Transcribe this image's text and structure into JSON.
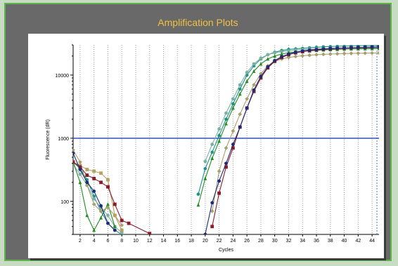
{
  "chart_data": {
    "type": "line",
    "title": "Amplification Plots",
    "xlabel": "Cycles",
    "ylabel": "Fluorescence (dR)",
    "y_scale": "log",
    "xlim": [
      1,
      45
    ],
    "ylim": [
      30,
      30000
    ],
    "x_ticks": [
      2,
      4,
      6,
      8,
      10,
      12,
      14,
      16,
      18,
      20,
      22,
      24,
      26,
      28,
      30,
      32,
      34,
      36,
      38,
      40,
      42,
      44
    ],
    "y_ticks": [
      100,
      1000,
      10000
    ],
    "y_tick_labels": [
      "100",
      "1000",
      "10000"
    ],
    "grid": "dotted vertical",
    "threshold": {
      "value": 1000,
      "color": "#3050c0"
    },
    "series": [
      {
        "color": "#1f8f86",
        "marker": "star",
        "x": [
          1,
          2,
          3,
          4,
          5,
          6,
          7,
          8,
          19,
          20,
          21,
          22,
          23,
          24,
          25,
          26,
          27,
          28,
          29,
          30,
          31,
          32,
          33,
          34,
          35,
          36,
          37,
          38,
          39,
          40,
          41,
          42,
          43,
          44,
          45
        ],
        "y": [
          420,
          330,
          220,
          120,
          70,
          45,
          35,
          30,
          130,
          330,
          600,
          1100,
          2000,
          3500,
          6000,
          10000,
          14000,
          18000,
          21000,
          23000,
          24500,
          25500,
          26000,
          26500,
          27000,
          27500,
          28000,
          28300,
          28600,
          28800,
          29000,
          29200,
          29300,
          29400,
          29500
        ]
      },
      {
        "color": "#7ab0a4",
        "marker": "circle",
        "x": [
          1,
          2,
          3,
          4,
          5,
          6,
          7,
          8,
          20,
          21,
          22,
          23,
          24,
          25,
          26,
          27,
          28,
          29,
          30,
          31,
          32,
          33,
          34,
          35,
          36,
          37,
          38,
          39,
          40,
          41,
          42,
          43,
          44,
          45
        ],
        "y": [
          380,
          270,
          180,
          110,
          80,
          60,
          40,
          32,
          430,
          800,
          1400,
          2500,
          4200,
          7000,
          11000,
          15000,
          18500,
          21000,
          22500,
          23500,
          24200,
          24800,
          25200,
          25500,
          25800,
          26000,
          26200,
          26400,
          26500,
          26600,
          26700,
          26800,
          26900,
          27000
        ]
      },
      {
        "color": "#228b22",
        "marker": "triangle",
        "x": [
          1,
          2,
          3,
          4,
          5,
          6,
          7,
          19,
          20,
          21,
          22,
          23,
          24,
          25,
          26,
          27,
          28,
          29,
          30,
          31,
          32,
          33,
          34,
          35,
          36,
          37,
          38,
          39,
          40,
          41,
          42,
          43,
          44,
          45
        ],
        "y": [
          420,
          200,
          60,
          35,
          55,
          90,
          40,
          88,
          230,
          480,
          900,
          1700,
          3000,
          5000,
          8000,
          11500,
          15000,
          18000,
          20000,
          21500,
          22500,
          23200,
          23800,
          24200,
          24600,
          25000,
          25300,
          25500,
          25700,
          25900,
          26000,
          26100,
          26200,
          26300
        ]
      },
      {
        "color": "#a8a070",
        "marker": "diamond",
        "x": [
          1,
          2,
          3,
          4,
          5,
          6,
          7,
          8,
          21,
          22,
          23,
          24,
          25,
          26,
          27,
          28,
          29,
          30,
          31,
          32,
          33,
          34,
          35,
          36,
          37,
          38,
          39,
          40,
          41,
          42,
          43,
          44,
          45
        ],
        "y": [
          650,
          420,
          180,
          90,
          70,
          80,
          60,
          42,
          70,
          300,
          700,
          1300,
          2400,
          4200,
          7000,
          10500,
          14000,
          16500,
          18000,
          19000,
          19700,
          20200,
          20600,
          21000,
          21300,
          21500,
          21700,
          21900,
          22000,
          22100,
          22200,
          22300,
          22400
        ]
      },
      {
        "color": "#b8a060",
        "marker": "square",
        "x": [
          1,
          2,
          3,
          4,
          5,
          6,
          7,
          8
        ],
        "y": [
          420,
          370,
          320,
          300,
          280,
          220,
          60,
          35
        ]
      },
      {
        "color": "#8b1a2a",
        "marker": "square",
        "x": [
          1,
          2,
          3,
          4,
          5,
          6,
          7,
          8,
          9,
          12,
          21,
          22,
          23,
          24,
          25,
          26,
          27,
          28,
          29,
          30,
          31,
          32,
          33,
          34,
          35,
          36,
          37,
          38,
          39,
          40,
          41,
          42,
          43,
          44,
          45
        ],
        "y": [
          420,
          350,
          260,
          230,
          200,
          170,
          90,
          50,
          45,
          31,
          40,
          135,
          350,
          700,
          1500,
          3000,
          5500,
          9000,
          13000,
          16500,
          19000,
          21000,
          22500,
          23500,
          24300,
          25000,
          25600,
          26000,
          26400,
          26700,
          27000,
          27200,
          27400,
          27600,
          27800
        ]
      },
      {
        "color": "#1e2a7a",
        "marker": "circle",
        "x": [
          1,
          2,
          3,
          4,
          5,
          6,
          7,
          20,
          21,
          22,
          23,
          24,
          25,
          26,
          27,
          28,
          29,
          30,
          31,
          32,
          33,
          34,
          35,
          36,
          37,
          38,
          39,
          40,
          41,
          42,
          43,
          44,
          45
        ],
        "y": [
          580,
          320,
          200,
          145,
          85,
          45,
          35,
          30,
          95,
          210,
          400,
          800,
          1500,
          3000,
          5800,
          9500,
          13500,
          17000,
          19500,
          21500,
          23000,
          24000,
          24800,
          25400,
          25900,
          26300,
          26600,
          26900,
          27100,
          27300,
          27500,
          27700,
          27900
        ]
      }
    ]
  }
}
